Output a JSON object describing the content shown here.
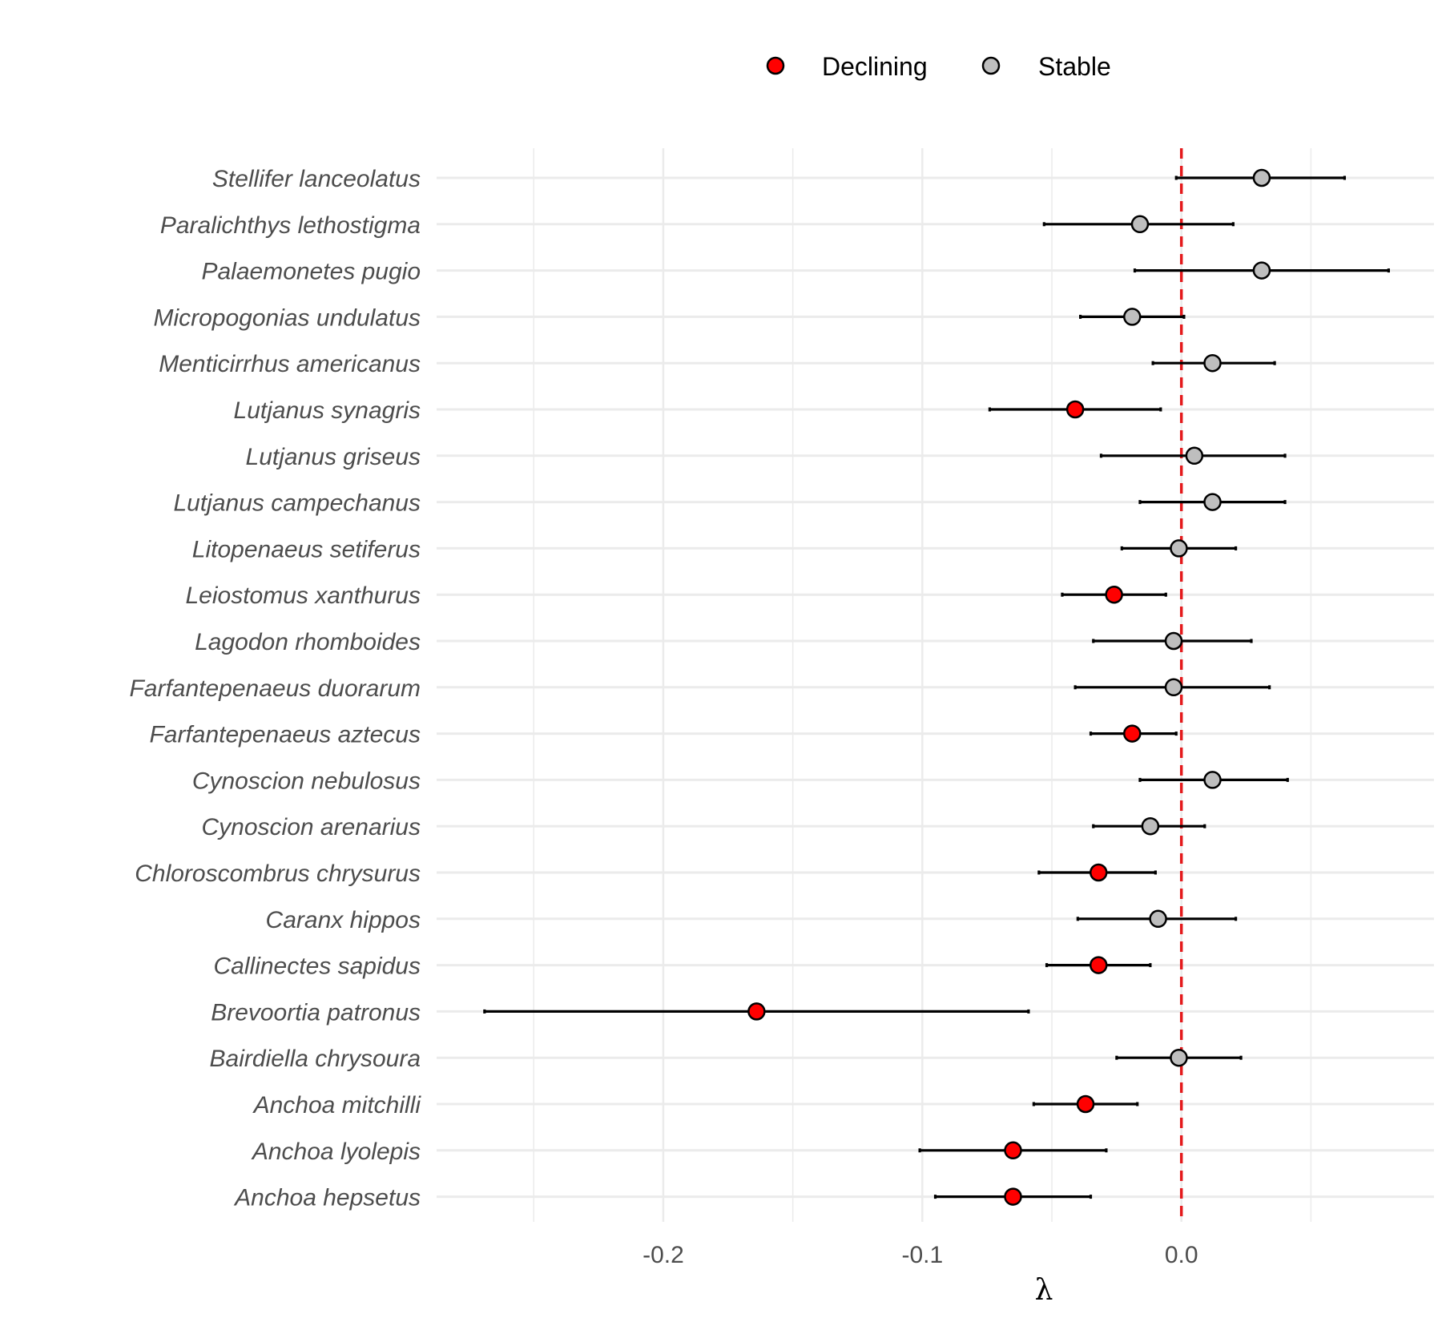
{
  "chart_data": {
    "type": "scatter",
    "subtype": "forest-plot",
    "title": "",
    "xlabel": "λ",
    "ylabel": "",
    "xlim": [
      -0.2875,
      0.0975
    ],
    "xticks": [
      -0.2,
      -0.1,
      0.0
    ],
    "xtick_labels": [
      "-0.2",
      "-0.1",
      "0.0"
    ],
    "grid": true,
    "reference_line": {
      "x": 0.0,
      "color": "#e41a1c",
      "style": "dashed"
    },
    "legend": {
      "position": "top",
      "entries": [
        {
          "label": "Declining",
          "color": "#ff0000"
        },
        {
          "label": "Stable",
          "color": "#bebebe"
        }
      ]
    },
    "colors": {
      "Declining": "#ff0000",
      "Stable": "#bebebe",
      "errorbar": "#000000",
      "grid": "#ebebeb"
    },
    "points": [
      {
        "species": "Stellifer lanceolatus",
        "status": "Stable",
        "estimate": 0.031,
        "lower": -0.002,
        "upper": 0.063
      },
      {
        "species": "Paralichthys lethostigma",
        "status": "Stable",
        "estimate": -0.016,
        "lower": -0.053,
        "upper": 0.02
      },
      {
        "species": "Palaemonetes pugio",
        "status": "Stable",
        "estimate": 0.031,
        "lower": -0.018,
        "upper": 0.08
      },
      {
        "species": "Micropogonias undulatus",
        "status": "Stable",
        "estimate": -0.019,
        "lower": -0.039,
        "upper": 0.001
      },
      {
        "species": "Menticirrhus americanus",
        "status": "Stable",
        "estimate": 0.012,
        "lower": -0.011,
        "upper": 0.036
      },
      {
        "species": "Lutjanus synagris",
        "status": "Declining",
        "estimate": -0.041,
        "lower": -0.074,
        "upper": -0.008
      },
      {
        "species": "Lutjanus griseus",
        "status": "Stable",
        "estimate": 0.005,
        "lower": -0.031,
        "upper": 0.04
      },
      {
        "species": "Lutjanus campechanus",
        "status": "Stable",
        "estimate": 0.012,
        "lower": -0.016,
        "upper": 0.04
      },
      {
        "species": "Litopenaeus setiferus",
        "status": "Stable",
        "estimate": -0.001,
        "lower": -0.023,
        "upper": 0.021
      },
      {
        "species": "Leiostomus xanthurus",
        "status": "Declining",
        "estimate": -0.026,
        "lower": -0.046,
        "upper": -0.006
      },
      {
        "species": "Lagodon rhomboides",
        "status": "Stable",
        "estimate": -0.003,
        "lower": -0.034,
        "upper": 0.027
      },
      {
        "species": "Farfantepenaeus duorarum",
        "status": "Stable",
        "estimate": -0.003,
        "lower": -0.041,
        "upper": 0.034
      },
      {
        "species": "Farfantepenaeus aztecus",
        "status": "Declining",
        "estimate": -0.019,
        "lower": -0.035,
        "upper": -0.002
      },
      {
        "species": "Cynoscion nebulosus",
        "status": "Stable",
        "estimate": 0.012,
        "lower": -0.016,
        "upper": 0.041
      },
      {
        "species": "Cynoscion arenarius",
        "status": "Stable",
        "estimate": -0.012,
        "lower": -0.034,
        "upper": 0.009
      },
      {
        "species": "Chloroscombrus chrysurus",
        "status": "Declining",
        "estimate": -0.032,
        "lower": -0.055,
        "upper": -0.01
      },
      {
        "species": "Caranx hippos",
        "status": "Stable",
        "estimate": -0.009,
        "lower": -0.04,
        "upper": 0.021
      },
      {
        "species": "Callinectes sapidus",
        "status": "Declining",
        "estimate": -0.032,
        "lower": -0.052,
        "upper": -0.012
      },
      {
        "species": "Brevoortia patronus",
        "status": "Declining",
        "estimate": -0.164,
        "lower": -0.269,
        "upper": -0.059
      },
      {
        "species": "Bairdiella chrysoura",
        "status": "Stable",
        "estimate": -0.001,
        "lower": -0.025,
        "upper": 0.023
      },
      {
        "species": "Anchoa mitchilli",
        "status": "Declining",
        "estimate": -0.037,
        "lower": -0.057,
        "upper": -0.017
      },
      {
        "species": "Anchoa lyolepis",
        "status": "Declining",
        "estimate": -0.065,
        "lower": -0.101,
        "upper": -0.029
      },
      {
        "species": "Anchoa hepsetus",
        "status": "Declining",
        "estimate": -0.065,
        "lower": -0.095,
        "upper": -0.035
      }
    ]
  }
}
